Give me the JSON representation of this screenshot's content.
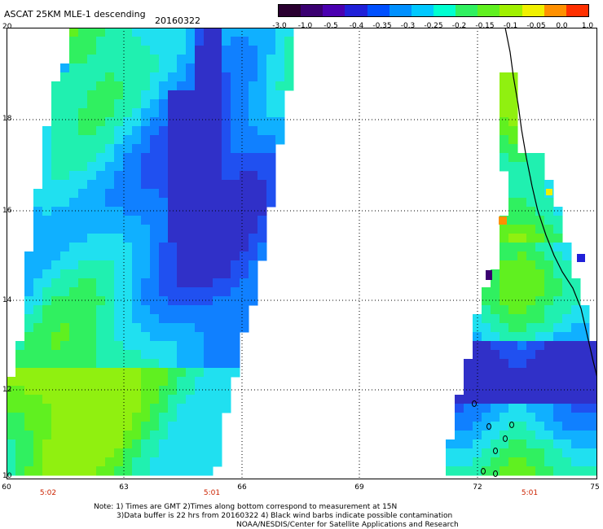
{
  "header": {
    "title": "ASCAT 25KM MLE-1 descending",
    "date": "20160322"
  },
  "colorbar": {
    "ticks": [
      "-3.0",
      "-1.0",
      "-0.5",
      "-0.4",
      "-0.35",
      "-0.3",
      "-0.25",
      "-0.2",
      "-0.15",
      "-0.1",
      "-0.05",
      "0.0",
      "1.0"
    ],
    "colors": [
      "#2a0030",
      "#3a0070",
      "#4a00b0",
      "#2020d8",
      "#0050ff",
      "#0090ff",
      "#00c8ff",
      "#00ffd0",
      "#30f060",
      "#60f020",
      "#a0f000",
      "#f0f000",
      "#ff9000",
      "#ff3000"
    ]
  },
  "axes": {
    "lat_labels": [
      "20",
      "18",
      "16",
      "14",
      "12",
      "10"
    ],
    "lon_labels": [
      "60",
      "63",
      "66",
      "69",
      "72",
      "75"
    ],
    "time_labels": [
      "5:02",
      "5:01",
      "5:01"
    ]
  },
  "notes": {
    "line1": "Note: 1) Times are GMT  2)Times along bottom correspond to measurement at 15N",
    "line2": "3)Data buffer is 22 hrs from 20160322  4) Black wind barbs indicate possible contamination",
    "line3": "NOAA/NESDIS/Center for Satellite Applications and Research"
  }
}
